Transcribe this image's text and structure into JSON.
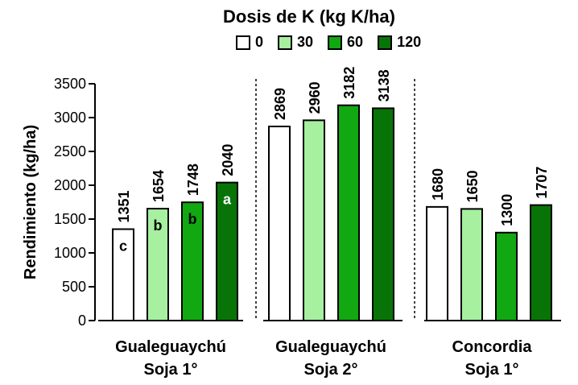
{
  "chart_data": {
    "type": "bar",
    "title": "Dosis de K (kg K/ha)",
    "ylabel": "Rendimiento (kg/ha)",
    "ylim": [
      0,
      3500
    ],
    "yticks": [
      "0",
      "500",
      "1000",
      "1500",
      "2000",
      "2500",
      "3000",
      "3500"
    ],
    "groups": [
      {
        "line1": "Gualeguaychú",
        "line2": "Soja 1°",
        "values": [
          1351,
          1654,
          1748,
          2040
        ],
        "letters": [
          "c",
          "b",
          "b",
          "a"
        ]
      },
      {
        "line1": "Gualeguaychú",
        "line2": "Soja 2°",
        "values": [
          2869,
          2960,
          3182,
          3138
        ],
        "letters": [
          "",
          "",
          "",
          ""
        ]
      },
      {
        "line1": "Concordia",
        "line2": "Soja 1°",
        "values": [
          1680,
          1650,
          1300,
          1707
        ],
        "letters": [
          "",
          "",
          "",
          ""
        ]
      }
    ],
    "series": [
      {
        "name": "0",
        "color": "#ffffff"
      },
      {
        "name": "30",
        "color": "#a6f0a0"
      },
      {
        "name": "60",
        "color": "#11a811"
      },
      {
        "name": "120",
        "color": "#087408"
      }
    ],
    "grid": false,
    "legend_position": "top"
  }
}
